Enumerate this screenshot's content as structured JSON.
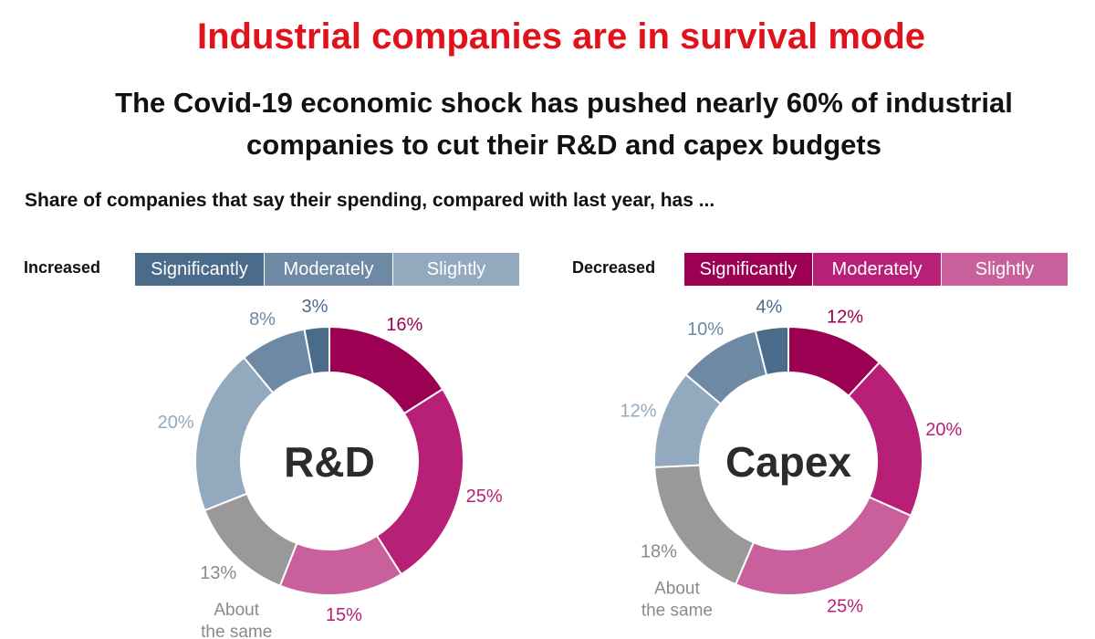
{
  "headline": "Industrial companies are in survival mode",
  "subheadline": {
    "line1": "The Covid-19 economic shock has pushed nearly 60% of industrial",
    "line2": "companies to cut their R&D and capex budgets"
  },
  "lead": "Share of companies that say their spending, compared with last year, has ...",
  "legend": {
    "increased": {
      "title": "Increased",
      "items": [
        {
          "label": "Significantly",
          "color": "#4a6b8a"
        },
        {
          "label": "Moderately",
          "color": "#6d89a4"
        },
        {
          "label": "Slightly",
          "color": "#93a9bd"
        }
      ]
    },
    "decreased": {
      "title": "Decreased",
      "items": [
        {
          "label": "Significantly",
          "color": "#9c0052"
        },
        {
          "label": "Moderately",
          "color": "#b81f76"
        },
        {
          "label": "Slightly",
          "color": "#c9609b"
        }
      ]
    }
  },
  "chart_data": [
    {
      "type": "pie",
      "center_label": "R&D",
      "segments": [
        {
          "category": "Decreased significantly",
          "value": 16,
          "label": "16%",
          "color": "#9c0052",
          "label_color": "#9c0052"
        },
        {
          "category": "Decreased moderately",
          "value": 25,
          "label": "25%",
          "color": "#b81f76",
          "label_color": "#b81f76"
        },
        {
          "category": "Decreased slightly",
          "value": 15,
          "label": "15%",
          "color": "#c9609b",
          "label_color": "#b81f76"
        },
        {
          "category": "About the same",
          "value": 13,
          "label": "13%",
          "color": "#999999",
          "label_color": "#8a8a8a",
          "sublabel": [
            "About",
            "the same"
          ]
        },
        {
          "category": "Increased slightly",
          "value": 20,
          "label": "20%",
          "color": "#93a9bd",
          "label_color": "#93a9bd"
        },
        {
          "category": "Increased moderately",
          "value": 8,
          "label": "8%",
          "color": "#6d89a4",
          "label_color": "#6d89a4"
        },
        {
          "category": "Increased significantly",
          "value": 3,
          "label": "3%",
          "color": "#4a6b8a",
          "label_color": "#4a6b8a"
        }
      ]
    },
    {
      "type": "pie",
      "center_label": "Capex",
      "segments": [
        {
          "category": "Decreased significantly",
          "value": 12,
          "label": "12%",
          "color": "#9c0052",
          "label_color": "#9c0052"
        },
        {
          "category": "Decreased moderately",
          "value": 20,
          "label": "20%",
          "color": "#b81f76",
          "label_color": "#b81f76"
        },
        {
          "category": "Decreased slightly",
          "value": 25,
          "label": "25%",
          "color": "#c9609b",
          "label_color": "#b81f76"
        },
        {
          "category": "About the same",
          "value": 18,
          "label": "18%",
          "color": "#999999",
          "label_color": "#8a8a8a",
          "sublabel": [
            "About",
            "the same"
          ]
        },
        {
          "category": "Increased slightly",
          "value": 12,
          "label": "12%",
          "color": "#93a9bd",
          "label_color": "#93a9bd"
        },
        {
          "category": "Increased moderately",
          "value": 10,
          "label": "10%",
          "color": "#6d89a4",
          "label_color": "#6d89a4"
        },
        {
          "category": "Increased significantly",
          "value": 4,
          "label": "4%",
          "color": "#4a6b8a",
          "label_color": "#4a6b8a"
        }
      ]
    }
  ]
}
